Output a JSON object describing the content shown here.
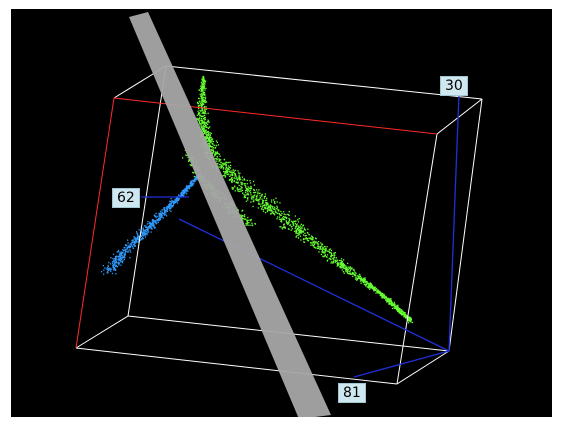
{
  "scene": {
    "background": "#000000",
    "box_edge_color": "#ffffff",
    "x_axis_color": "#ff2a2a",
    "axis_color": "#1f2fd9",
    "cluster_colors": {
      "green": "#66ff33",
      "blue": "#2f9bff"
    },
    "plane_color": "#a7a7a7"
  },
  "axes": {
    "top_label": "30",
    "left_label": "62",
    "bottom_label": "81"
  }
}
